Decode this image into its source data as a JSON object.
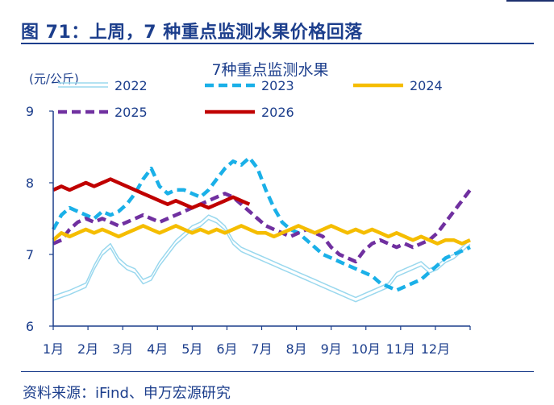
{
  "figure_title": "图 71：上周，7 种重点监测水果价格回落",
  "source_note": "资料来源：iFind、申万宏源研究",
  "chart_data": {
    "type": "line",
    "title": "7种重点监测水果",
    "ylabel": "(元/公斤)",
    "xlabel": "",
    "ylim": [
      6,
      9
    ],
    "yticks": [
      6,
      7,
      8,
      9
    ],
    "x_ticks": [
      "1月",
      "2月",
      "3月",
      "4月",
      "5月",
      "6月",
      "7月",
      "8月",
      "9月",
      "10月",
      "11月",
      "12月"
    ],
    "x_unit": "week of year (1-52)",
    "legend_position": "top",
    "grid": false,
    "series": [
      {
        "name": "2022",
        "color": "#9ad8ee",
        "style": "double-line",
        "points": [
          [
            1,
            6.42
          ],
          [
            3,
            6.5
          ],
          [
            5,
            6.6
          ],
          [
            6,
            6.85
          ],
          [
            7,
            7.05
          ],
          [
            8,
            7.15
          ],
          [
            9,
            6.95
          ],
          [
            10,
            6.85
          ],
          [
            11,
            6.8
          ],
          [
            12,
            6.65
          ],
          [
            13,
            6.7
          ],
          [
            14,
            6.9
          ],
          [
            15,
            7.05
          ],
          [
            16,
            7.2
          ],
          [
            17,
            7.3
          ],
          [
            18,
            7.4
          ],
          [
            19,
            7.45
          ],
          [
            20,
            7.55
          ],
          [
            21,
            7.5
          ],
          [
            22,
            7.4
          ],
          [
            23,
            7.2
          ],
          [
            24,
            7.1
          ],
          [
            25,
            7.05
          ],
          [
            26,
            7.0
          ],
          [
            27,
            6.95
          ],
          [
            28,
            6.9
          ],
          [
            29,
            6.85
          ],
          [
            30,
            6.8
          ],
          [
            31,
            6.75
          ],
          [
            32,
            6.7
          ],
          [
            33,
            6.65
          ],
          [
            34,
            6.6
          ],
          [
            35,
            6.55
          ],
          [
            36,
            6.5
          ],
          [
            37,
            6.45
          ],
          [
            38,
            6.4
          ],
          [
            39,
            6.45
          ],
          [
            40,
            6.5
          ],
          [
            41,
            6.55
          ],
          [
            42,
            6.6
          ],
          [
            43,
            6.75
          ],
          [
            44,
            6.8
          ],
          [
            45,
            6.85
          ],
          [
            46,
            6.9
          ],
          [
            47,
            6.8
          ],
          [
            48,
            6.85
          ],
          [
            49,
            6.95
          ],
          [
            50,
            7.0
          ],
          [
            51,
            7.1
          ],
          [
            52,
            7.2
          ]
        ]
      },
      {
        "name": "2023",
        "color": "#1ab0e8",
        "style": "dashed",
        "points": [
          [
            1,
            7.35
          ],
          [
            2,
            7.55
          ],
          [
            3,
            7.65
          ],
          [
            4,
            7.6
          ],
          [
            5,
            7.55
          ],
          [
            6,
            7.5
          ],
          [
            7,
            7.6
          ],
          [
            8,
            7.55
          ],
          [
            9,
            7.6
          ],
          [
            10,
            7.7
          ],
          [
            11,
            7.85
          ],
          [
            12,
            8.05
          ],
          [
            13,
            8.2
          ],
          [
            14,
            7.95
          ],
          [
            15,
            7.85
          ],
          [
            16,
            7.9
          ],
          [
            17,
            7.9
          ],
          [
            18,
            7.85
          ],
          [
            19,
            7.8
          ],
          [
            20,
            7.9
          ],
          [
            21,
            8.05
          ],
          [
            22,
            8.2
          ],
          [
            23,
            8.3
          ],
          [
            24,
            8.25
          ],
          [
            25,
            8.35
          ],
          [
            26,
            8.2
          ],
          [
            27,
            7.9
          ],
          [
            28,
            7.65
          ],
          [
            29,
            7.45
          ],
          [
            30,
            7.35
          ],
          [
            31,
            7.3
          ],
          [
            32,
            7.2
          ],
          [
            33,
            7.1
          ],
          [
            34,
            7.0
          ],
          [
            35,
            6.95
          ],
          [
            36,
            6.9
          ],
          [
            37,
            6.85
          ],
          [
            38,
            6.8
          ],
          [
            39,
            6.75
          ],
          [
            40,
            6.7
          ],
          [
            41,
            6.6
          ],
          [
            42,
            6.55
          ],
          [
            43,
            6.5
          ],
          [
            44,
            6.55
          ],
          [
            45,
            6.6
          ],
          [
            46,
            6.65
          ],
          [
            47,
            6.75
          ],
          [
            48,
            6.85
          ],
          [
            49,
            6.95
          ],
          [
            50,
            7.0
          ],
          [
            51,
            7.05
          ],
          [
            52,
            7.1
          ]
        ]
      },
      {
        "name": "2024",
        "color": "#f5bd00",
        "style": "solid",
        "points": [
          [
            1,
            7.2
          ],
          [
            2,
            7.3
          ],
          [
            3,
            7.25
          ],
          [
            4,
            7.3
          ],
          [
            5,
            7.35
          ],
          [
            6,
            7.3
          ],
          [
            7,
            7.35
          ],
          [
            8,
            7.3
          ],
          [
            9,
            7.25
          ],
          [
            10,
            7.3
          ],
          [
            11,
            7.35
          ],
          [
            12,
            7.4
          ],
          [
            13,
            7.35
          ],
          [
            14,
            7.3
          ],
          [
            15,
            7.35
          ],
          [
            16,
            7.4
          ],
          [
            17,
            7.35
          ],
          [
            18,
            7.3
          ],
          [
            19,
            7.35
          ],
          [
            20,
            7.3
          ],
          [
            21,
            7.35
          ],
          [
            22,
            7.3
          ],
          [
            23,
            7.35
          ],
          [
            24,
            7.4
          ],
          [
            25,
            7.35
          ],
          [
            26,
            7.3
          ],
          [
            27,
            7.3
          ],
          [
            28,
            7.25
          ],
          [
            29,
            7.3
          ],
          [
            30,
            7.35
          ],
          [
            31,
            7.4
          ],
          [
            32,
            7.35
          ],
          [
            33,
            7.3
          ],
          [
            34,
            7.35
          ],
          [
            35,
            7.4
          ],
          [
            36,
            7.35
          ],
          [
            37,
            7.3
          ],
          [
            38,
            7.35
          ],
          [
            39,
            7.3
          ],
          [
            40,
            7.35
          ],
          [
            41,
            7.3
          ],
          [
            42,
            7.25
          ],
          [
            43,
            7.3
          ],
          [
            44,
            7.25
          ],
          [
            45,
            7.2
          ],
          [
            46,
            7.25
          ],
          [
            47,
            7.2
          ],
          [
            48,
            7.15
          ],
          [
            49,
            7.2
          ],
          [
            50,
            7.2
          ],
          [
            51,
            7.15
          ],
          [
            52,
            7.2
          ]
        ]
      },
      {
        "name": "2025",
        "color": "#7030a0",
        "style": "dashed",
        "points": [
          [
            1,
            7.15
          ],
          [
            2,
            7.2
          ],
          [
            3,
            7.35
          ],
          [
            4,
            7.45
          ],
          [
            5,
            7.5
          ],
          [
            6,
            7.45
          ],
          [
            7,
            7.5
          ],
          [
            8,
            7.45
          ],
          [
            9,
            7.4
          ],
          [
            10,
            7.45
          ],
          [
            11,
            7.5
          ],
          [
            12,
            7.55
          ],
          [
            13,
            7.5
          ],
          [
            14,
            7.45
          ],
          [
            15,
            7.5
          ],
          [
            16,
            7.55
          ],
          [
            17,
            7.6
          ],
          [
            18,
            7.65
          ],
          [
            19,
            7.7
          ],
          [
            20,
            7.75
          ],
          [
            21,
            7.8
          ],
          [
            22,
            7.85
          ],
          [
            23,
            7.8
          ],
          [
            24,
            7.7
          ],
          [
            25,
            7.6
          ],
          [
            26,
            7.5
          ],
          [
            27,
            7.4
          ],
          [
            28,
            7.35
          ],
          [
            29,
            7.3
          ],
          [
            30,
            7.25
          ],
          [
            31,
            7.3
          ],
          [
            32,
            7.35
          ],
          [
            33,
            7.3
          ],
          [
            34,
            7.25
          ],
          [
            35,
            7.1
          ],
          [
            36,
            7.0
          ],
          [
            37,
            6.95
          ],
          [
            38,
            6.9
          ],
          [
            39,
            7.05
          ],
          [
            40,
            7.15
          ],
          [
            41,
            7.2
          ],
          [
            42,
            7.15
          ],
          [
            43,
            7.1
          ],
          [
            44,
            7.15
          ],
          [
            45,
            7.1
          ],
          [
            46,
            7.15
          ],
          [
            47,
            7.2
          ],
          [
            48,
            7.3
          ],
          [
            49,
            7.45
          ],
          [
            50,
            7.6
          ],
          [
            51,
            7.75
          ],
          [
            52,
            7.9
          ]
        ]
      },
      {
        "name": "2026",
        "color": "#c00000",
        "style": "solid",
        "points": [
          [
            1,
            7.9
          ],
          [
            2,
            7.95
          ],
          [
            3,
            7.9
          ],
          [
            4,
            7.95
          ],
          [
            5,
            8.0
          ],
          [
            6,
            7.95
          ],
          [
            7,
            8.0
          ],
          [
            8,
            8.05
          ],
          [
            9,
            8.0
          ],
          [
            10,
            7.95
          ],
          [
            11,
            7.9
          ],
          [
            12,
            7.85
          ],
          [
            13,
            7.8
          ],
          [
            14,
            7.75
          ],
          [
            15,
            7.7
          ],
          [
            16,
            7.75
          ],
          [
            17,
            7.7
          ],
          [
            18,
            7.65
          ],
          [
            19,
            7.7
          ],
          [
            20,
            7.65
          ],
          [
            21,
            7.7
          ],
          [
            22,
            7.75
          ],
          [
            23,
            7.8
          ],
          [
            24,
            7.75
          ],
          [
            25,
            7.7
          ]
        ]
      }
    ]
  }
}
